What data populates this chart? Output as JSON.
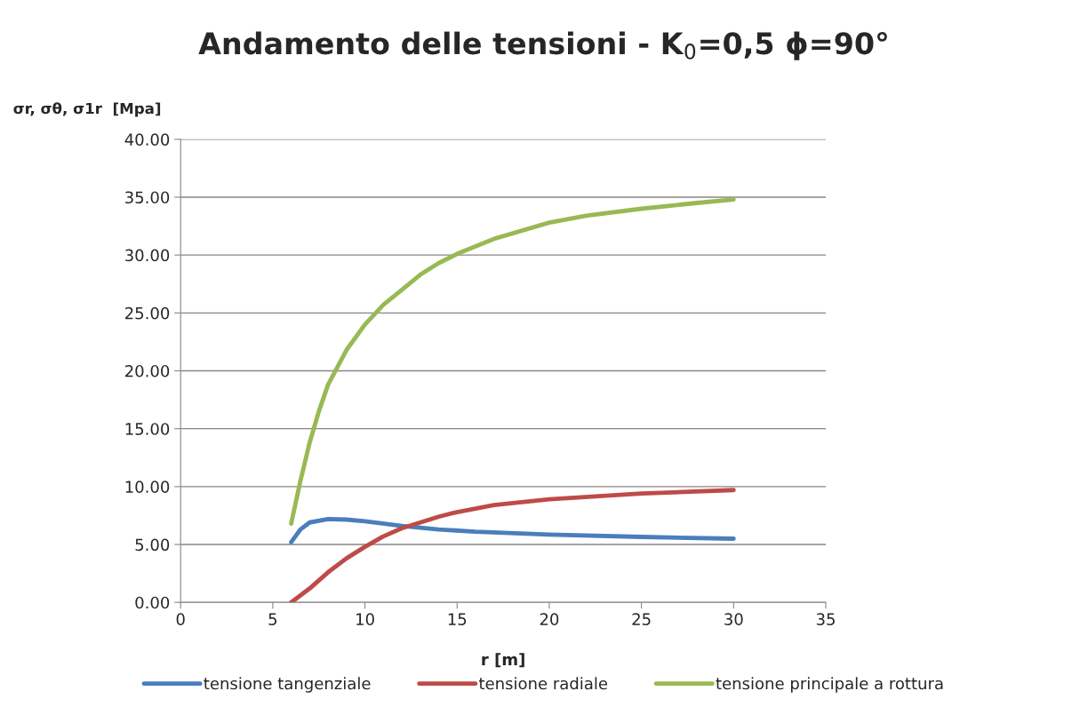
{
  "chart_data": {
    "type": "line",
    "title": "Andamento delle tensioni - K$_{0}$=0,5 ϕ=90°",
    "xlabel": "r [m]",
    "ylabel": "σr, σθ, σ1r  [Mpa]",
    "xlim": [
      0,
      35
    ],
    "xticks": [
      0,
      5,
      10,
      15,
      20,
      25,
      30,
      35
    ],
    "ylim": [
      0,
      40
    ],
    "yticks": [
      {
        "value": 0,
        "label": "0.00"
      },
      {
        "value": 5,
        "label": "5.00"
      },
      {
        "value": 10,
        "label": "10.00"
      },
      {
        "value": 15,
        "label": "15.00"
      },
      {
        "value": 20,
        "label": "20.00"
      },
      {
        "value": 25,
        "label": "25.00"
      },
      {
        "value": 30,
        "label": "30.00"
      },
      {
        "value": 35,
        "label": "35.00"
      },
      {
        "value": 40,
        "label": "40.00"
      }
    ],
    "grid": "y",
    "legend": "bottom",
    "marker": "none",
    "line_style": "solid",
    "series": [
      {
        "name": "tensione tangenziale",
        "color": "#4a7ebb",
        "x": [
          6,
          6.5,
          7,
          8,
          9,
          10,
          12,
          14,
          16,
          20,
          25,
          30
        ],
        "values": [
          5.2,
          6.3,
          6.9,
          7.2,
          7.15,
          7.0,
          6.6,
          6.3,
          6.1,
          5.85,
          5.65,
          5.5
        ]
      },
      {
        "name": "tensione radiale",
        "color": "#be4b48",
        "x": [
          6,
          7,
          8,
          9,
          10,
          11,
          12,
          13,
          14,
          15,
          17,
          20,
          25,
          30
        ],
        "values": [
          0,
          1.2,
          2.6,
          3.8,
          4.8,
          5.7,
          6.4,
          6.9,
          7.4,
          7.8,
          8.4,
          8.9,
          9.4,
          9.7
        ]
      },
      {
        "name": "tensione principale a rottura",
        "color": "#98b954",
        "x": [
          6,
          6.5,
          7,
          7.5,
          8,
          9,
          10,
          11,
          12,
          13,
          14,
          15,
          17,
          20,
          22,
          25,
          28,
          30
        ],
        "values": [
          6.8,
          10.5,
          13.8,
          16.5,
          18.8,
          21.8,
          24.0,
          25.7,
          27.0,
          28.3,
          29.3,
          30.1,
          31.4,
          32.8,
          33.4,
          34.0,
          34.5,
          34.8
        ]
      }
    ]
  }
}
